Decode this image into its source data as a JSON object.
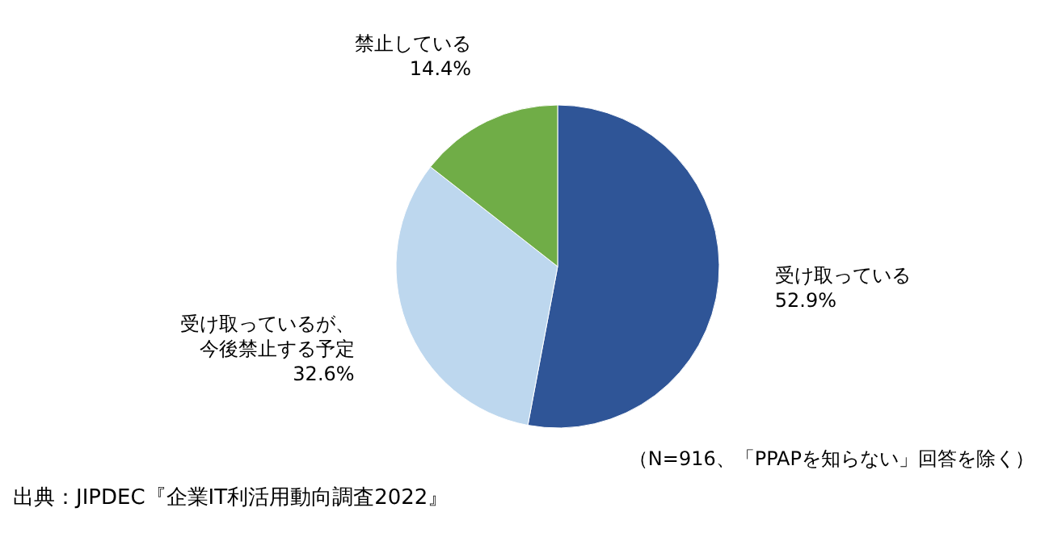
{
  "chart_data": {
    "type": "pie",
    "categories": [
      "受け取っている",
      "受け取っているが、今後禁止する予定",
      "禁止している"
    ],
    "values": [
      52.9,
      32.6,
      14.4
    ],
    "value_labels": [
      "52.9%",
      "32.6%",
      "14.4%"
    ],
    "colors": [
      "#2f5597",
      "#bdd7ee",
      "#70ad47"
    ],
    "annotations": [
      "（N=916、「PPAPを知らない」回答を除く）",
      "出典：JIPDEC『企業IT利活用動向調査2022』"
    ]
  }
}
